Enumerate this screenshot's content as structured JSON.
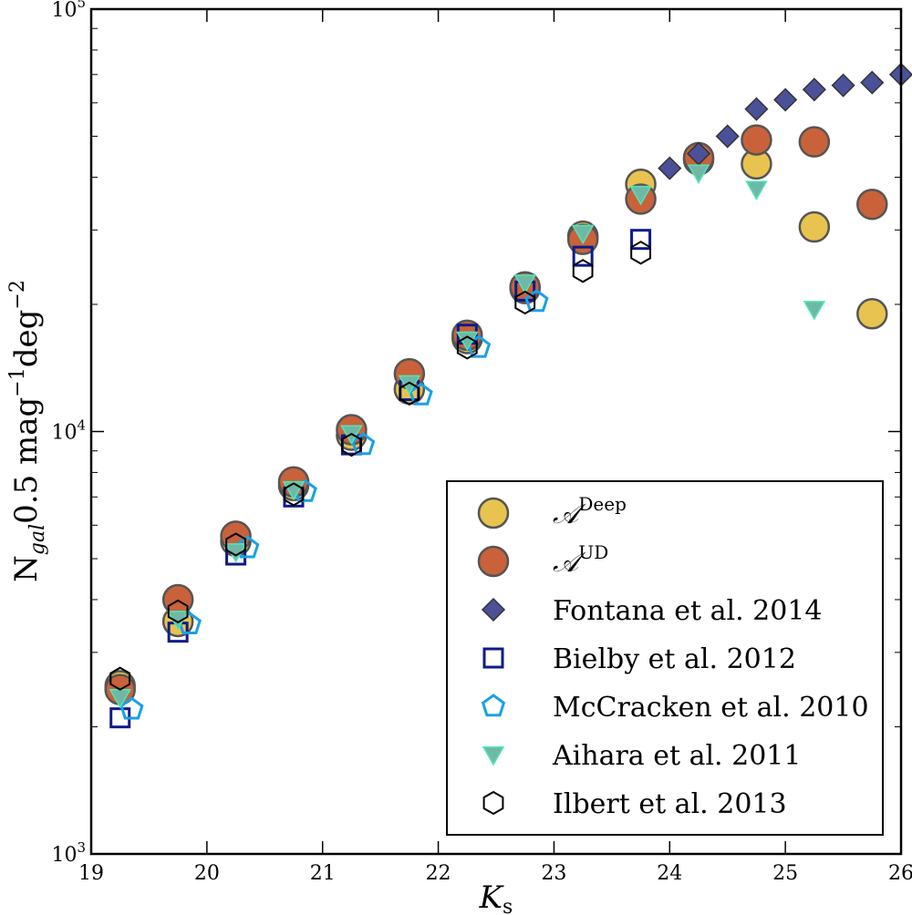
{
  "chart_data": {
    "type": "scatter",
    "xlabel": "K",
    "xlabel_sub": "s",
    "ylabel_parts": [
      "N",
      "gal",
      "0.5 mag",
      "−1",
      "deg",
      "−2"
    ],
    "xlim": [
      19,
      26
    ],
    "ylim": [
      1000,
      100000
    ],
    "yscale": "log",
    "x_ticks": [
      19,
      20,
      21,
      22,
      23,
      24,
      25,
      26
    ],
    "y_ticks": [
      {
        "base": "10",
        "exp": "3"
      },
      {
        "base": "10",
        "exp": "4"
      },
      {
        "base": "10",
        "exp": "5"
      }
    ],
    "legend_position": "lower-right",
    "series": [
      {
        "name": "A^Deep",
        "label_main": "𝒜",
        "label_sup": "Deep",
        "marker": "circle",
        "color": "#e8c34f",
        "edge": "#555555",
        "points": [
          [
            19.25,
            2500
          ],
          [
            19.75,
            3550
          ],
          [
            20.25,
            5500
          ],
          [
            20.75,
            7450
          ],
          [
            21.25,
            9800
          ],
          [
            21.75,
            12600
          ],
          [
            22.25,
            16600
          ],
          [
            22.75,
            21800
          ],
          [
            23.25,
            29000
          ],
          [
            23.75,
            38500
          ],
          [
            24.25,
            44000
          ],
          [
            24.75,
            43000
          ],
          [
            25.25,
            30500
          ],
          [
            25.75,
            19000
          ]
        ]
      },
      {
        "name": "A^UD",
        "label_main": "𝒜",
        "label_sup": "UD",
        "marker": "circle",
        "color": "#c9623a",
        "edge": "#555555",
        "points": [
          [
            19.25,
            2450
          ],
          [
            19.75,
            4000
          ],
          [
            20.25,
            5650
          ],
          [
            20.75,
            7600
          ],
          [
            21.25,
            10100
          ],
          [
            21.75,
            13700
          ],
          [
            22.25,
            16900
          ],
          [
            22.75,
            22000
          ],
          [
            23.25,
            28500
          ],
          [
            23.75,
            35500
          ],
          [
            24.25,
            44500
          ],
          [
            24.75,
            49000
          ],
          [
            25.25,
            48500
          ],
          [
            25.75,
            34500
          ]
        ]
      },
      {
        "name": "Fontana et al. 2014",
        "marker": "diamond",
        "color": "#4a5199",
        "edge": "#333333",
        "points": [
          [
            24.0,
            42000
          ],
          [
            24.25,
            45500
          ],
          [
            24.5,
            50000
          ],
          [
            24.75,
            58000
          ],
          [
            25.0,
            61000
          ],
          [
            25.25,
            64500
          ],
          [
            25.5,
            66000
          ],
          [
            25.75,
            67000
          ],
          [
            26.0,
            70000
          ]
        ]
      },
      {
        "name": "Bielby et al. 2012",
        "marker": "square",
        "color": "none",
        "edge": "#0d1b8a",
        "points": [
          [
            19.25,
            2100
          ],
          [
            19.75,
            3350
          ],
          [
            20.25,
            5100
          ],
          [
            20.75,
            7000
          ],
          [
            21.25,
            9300
          ],
          [
            21.75,
            12500
          ],
          [
            22.25,
            17000
          ],
          [
            22.75,
            21500
          ],
          [
            23.25,
            26000
          ],
          [
            23.75,
            28500
          ]
        ]
      },
      {
        "name": "McCracken et al. 2010",
        "marker": "pentagon",
        "color": "none",
        "edge": "#1aa0e8",
        "points": [
          [
            19.35,
            2200
          ],
          [
            19.85,
            3500
          ],
          [
            20.35,
            5300
          ],
          [
            20.85,
            7200
          ],
          [
            21.35,
            9300
          ],
          [
            21.85,
            12200
          ],
          [
            22.35,
            15800
          ],
          [
            22.85,
            20300
          ]
        ]
      },
      {
        "name": "Aihara et al. 2011",
        "marker": "triangle-down",
        "color": "#6fb8a6",
        "edge": "#4ee8b8",
        "points": [
          [
            19.25,
            2350
          ],
          [
            19.75,
            3600
          ],
          [
            20.25,
            5200
          ],
          [
            20.75,
            7300
          ],
          [
            21.25,
            9900
          ],
          [
            21.75,
            13000
          ],
          [
            22.25,
            16500
          ],
          [
            22.75,
            22500
          ],
          [
            23.25,
            29500
          ],
          [
            23.75,
            36500
          ],
          [
            24.25,
            41000
          ],
          [
            24.75,
            37500
          ],
          [
            25.25,
            19500
          ]
        ]
      },
      {
        "name": "Ilbert et al. 2013",
        "marker": "hexagon",
        "color": "none",
        "edge": "#000000",
        "points": [
          [
            19.25,
            2600
          ],
          [
            19.75,
            3750
          ],
          [
            20.25,
            5400
          ],
          [
            20.75,
            7100
          ],
          [
            21.25,
            9300
          ],
          [
            21.75,
            12300
          ],
          [
            22.25,
            15800
          ],
          [
            22.75,
            20200
          ],
          [
            23.25,
            24000
          ],
          [
            23.75,
            26500
          ]
        ]
      }
    ]
  }
}
